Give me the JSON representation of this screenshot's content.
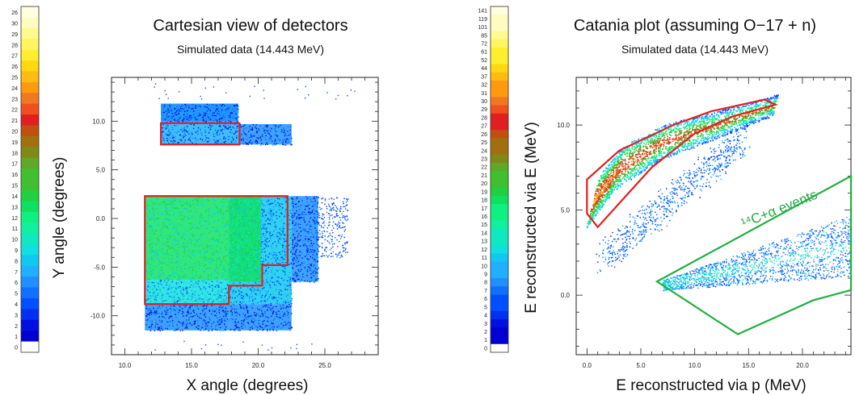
{
  "palette": [
    "#ffffff",
    "#0000d0",
    "#0010e0",
    "#0030f0",
    "#0050ff",
    "#1070ff",
    "#2090ff",
    "#20b0ff",
    "#10c8f0",
    "#10e0e0",
    "#10e8c0",
    "#10f0a0",
    "#10f080",
    "#10e060",
    "#20d040",
    "#40c030",
    "#60a828",
    "#808818",
    "#a07010",
    "#c05010",
    "#e02020",
    "#f05020",
    "#f07820",
    "#ff9a10",
    "#ffbc10",
    "#ffd810",
    "#ffee30",
    "#fff560",
    "#fffa90",
    "#fffcc0",
    "#fffee0"
  ],
  "chart_data": [
    {
      "type": "heatmap",
      "title": "Cartesian view of detectors",
      "subtitle": "Simulated data (14.443 MeV)",
      "xlabel": "X angle (degrees)",
      "ylabel": "Y angle (degrees)",
      "xlim": [
        9,
        29
      ],
      "ylim": [
        -14,
        14.5
      ],
      "xticks": [
        "10.0",
        "15.0",
        "20.0",
        "25.0"
      ],
      "xtick_values": [
        10,
        15,
        20,
        25
      ],
      "yticks": [
        "10.0",
        "5.0",
        "0.0",
        "-5.0",
        "-10.0"
      ],
      "ytick_values": [
        10,
        5,
        0,
        -5,
        -10
      ],
      "colorbar_labels": [
        "0",
        "1",
        "2",
        "3",
        "4",
        "5",
        "6",
        "7",
        "8",
        "9",
        "10",
        "11",
        "12",
        "13",
        "14",
        "15",
        "16",
        "17",
        "18",
        "19",
        "20",
        "21",
        "22",
        "23",
        "24",
        "25",
        "26",
        "27",
        "28",
        "29",
        "30",
        "26"
      ],
      "regions": [
        {
          "x": [
            11.5,
            17.8
          ],
          "y": [
            -11.5,
            -8.8
          ],
          "level": 4
        },
        {
          "x": [
            17.8,
            22.5
          ],
          "y": [
            -11.5,
            -8.8
          ],
          "level": 4
        },
        {
          "x": [
            17.8,
            22.5
          ],
          "y": [
            -8.8,
            2.3
          ],
          "level": 6
        },
        {
          "x": [
            22.5,
            24.5
          ],
          "y": [
            -6.5,
            2.3
          ],
          "level": 4
        },
        {
          "x": [
            11.5,
            17.8
          ],
          "y": [
            -8.8,
            -6.3
          ],
          "level": 7
        },
        {
          "x": [
            11.5,
            17.8
          ],
          "y": [
            -6.3,
            2.3
          ],
          "level": 11
        },
        {
          "x": [
            17.8,
            20.2
          ],
          "y": [
            -6.5,
            2.3
          ],
          "level": 11
        },
        {
          "x": [
            12.7,
            18.5
          ],
          "y": [
            7.6,
            11.8
          ],
          "level": 5
        },
        {
          "x": [
            18.5,
            22.5
          ],
          "y": [
            7.6,
            9.7
          ],
          "level": 4
        },
        {
          "x": [
            12.7,
            18.5
          ],
          "y": [
            10,
            11.8
          ],
          "level": 4
        }
      ],
      "outlines": [
        {
          "color": "#e02020",
          "points": [
            [
              11.5,
              2.3
            ],
            [
              22.2,
              2.3
            ],
            [
              22.2,
              -4.8
            ],
            [
              20.3,
              -4.8
            ],
            [
              20.3,
              -6.9
            ],
            [
              17.8,
              -6.9
            ],
            [
              17.8,
              -8.8
            ],
            [
              11.5,
              -8.8
            ]
          ]
        },
        {
          "color": "#e02020",
          "points": [
            [
              12.7,
              9.8
            ],
            [
              18.6,
              9.8
            ],
            [
              18.6,
              7.6
            ],
            [
              12.7,
              7.6
            ]
          ]
        }
      ]
    },
    {
      "type": "heatmap",
      "title": "Catania plot (assuming O−17 + n)",
      "subtitle": "Simulated data (14.443 MeV)",
      "xlabel": "E reconstructed via p (MeV)",
      "ylabel": "E reconstructed via E (MeV)",
      "xlim": [
        -1,
        24.5
      ],
      "ylim": [
        -3.5,
        12.8
      ],
      "xticks": [
        "0.0",
        "5.0",
        "10.0",
        "15.0",
        "20.0"
      ],
      "xtick_values": [
        0,
        5,
        10,
        15,
        20
      ],
      "yticks": [
        "10.0",
        "5.0",
        "0.0"
      ],
      "ytick_values": [
        10,
        5,
        0
      ],
      "colorbar_labels": [
        "0",
        "1",
        "2",
        "3",
        "4",
        "5",
        "6",
        "7",
        "8",
        "9",
        "10",
        "11",
        "12",
        "13",
        "14",
        "15",
        "16",
        "17",
        "18",
        "19",
        "20",
        "21",
        "22",
        "23",
        "24",
        "25",
        "26",
        "27",
        "28",
        "29",
        "30",
        "31",
        "32",
        "37",
        "44",
        "52",
        "61",
        "72",
        "85",
        "101",
        "119",
        "141"
      ],
      "band_centerline": [
        [
          0.5,
          5.5
        ],
        [
          3,
          7.5
        ],
        [
          7,
          9
        ],
        [
          12,
          10
        ],
        [
          17.5,
          11.2
        ]
      ],
      "alpha_band_label": "¹⁴C+α events",
      "outlines": [
        {
          "color": "#e02020",
          "points": [
            [
              0,
              4.8
            ],
            [
              0,
              6.8
            ],
            [
              3,
              8.5
            ],
            [
              8,
              10
            ],
            [
              11.5,
              10.8
            ],
            [
              16.5,
              11.5
            ],
            [
              17.5,
              11.2
            ],
            [
              13.5,
              10.5
            ],
            [
              10,
              9.5
            ],
            [
              6,
              7.5
            ],
            [
              1,
              4
            ]
          ]
        },
        {
          "color": "#20b040",
          "points": [
            [
              6.5,
              0.8
            ],
            [
              24.5,
              7
            ],
            [
              24.5,
              0.3
            ],
            [
              21,
              -0.3
            ],
            [
              14,
              -2.3
            ]
          ]
        }
      ]
    }
  ]
}
